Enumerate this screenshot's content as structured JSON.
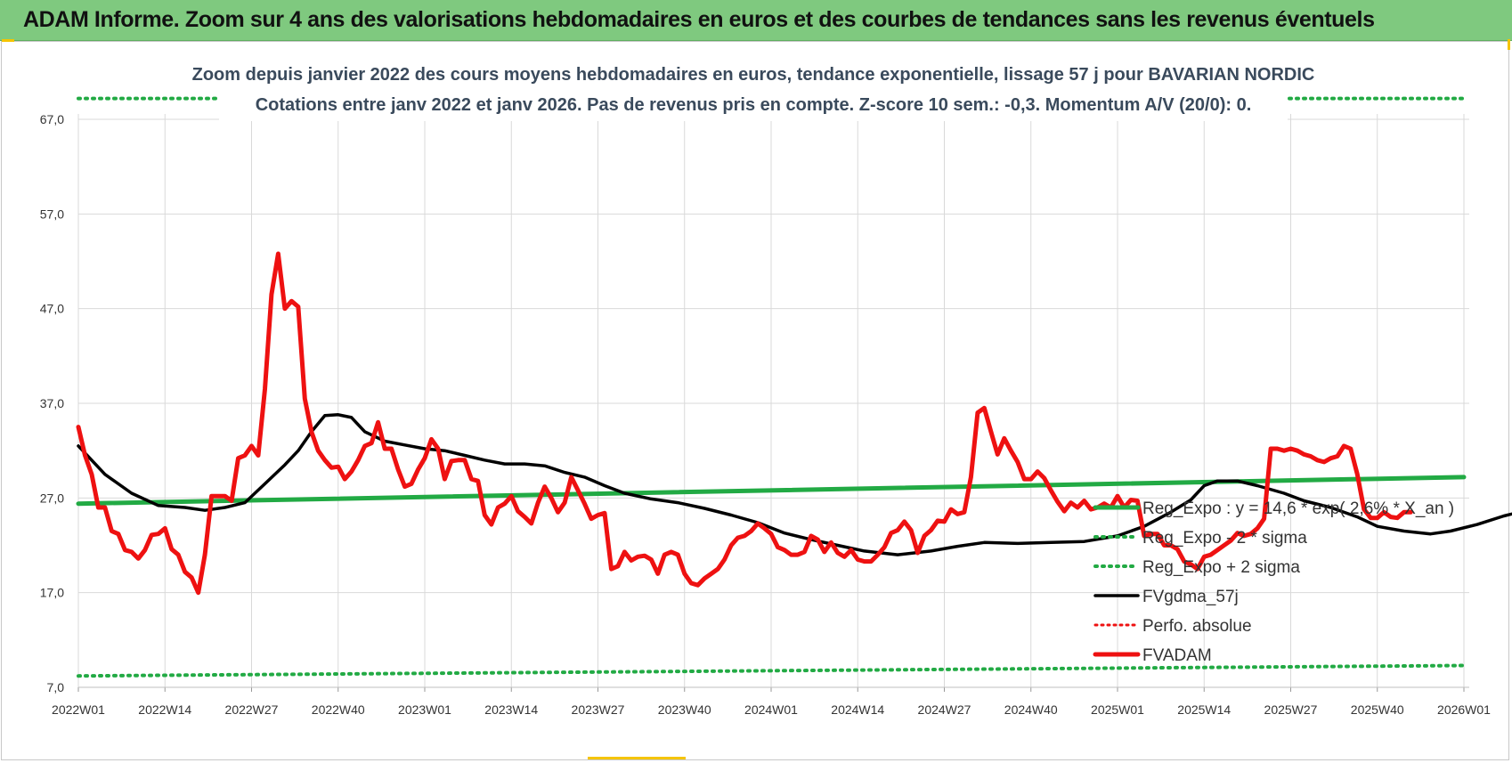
{
  "header": {
    "title": "ADAM Informe. Zoom sur 4 ans des valorisations hebdomadaires en euros et des courbes de tendances sans les revenus éventuels"
  },
  "colors": {
    "header_bg": "#7fc97f",
    "fvadam": "#ee1111",
    "fvgdma": "#000000",
    "reg_expo": "#22aa44",
    "sigma": "#22aa44",
    "perfo": "#ee1111"
  },
  "chart_data": {
    "type": "line",
    "title": "Zoom depuis janvier 2022 des cours moyens hebdomadaires en euros, tendance exponentielle, lissage 57 j pour BAVARIAN NORDIC",
    "subtitle": "Cotations entre janv 2022 et janv 2026. Pas de revenus pris en compte. Z-score 10 sem.: -0,3. Momentum A/V (20/0): 0.",
    "xlabel": "",
    "ylabel": "",
    "ylim": [
      7,
      67
    ],
    "y_ticks": [
      "7,0",
      "17,0",
      "27,0",
      "37,0",
      "47,0",
      "57,0",
      "67,0"
    ],
    "x_ticks": [
      "2022W01",
      "2022W14",
      "2022W27",
      "2022W40",
      "2023W01",
      "2023W14",
      "2023W27",
      "2023W40",
      "2024W01",
      "2024W14",
      "2024W27",
      "2024W40",
      "2025W01",
      "2025W14",
      "2025W27",
      "2025W40",
      "2026W01"
    ],
    "x_range_weeks": [
      0,
      208
    ],
    "grid": true,
    "legend_position": "right",
    "series": [
      {
        "name": "Reg_Expo : y = 14,6 * exp( 2,6% * X_an )",
        "style": "solid-green",
        "points": [
          [
            0,
            26.4
          ],
          [
            208,
            29.2
          ]
        ]
      },
      {
        "name": "Reg_Expo - 2 * sigma",
        "style": "dotted-green",
        "points": [
          [
            0,
            8.2
          ],
          [
            208,
            9.3
          ]
        ]
      },
      {
        "name": "Reg_Expo + 2 sigma",
        "style": "dotted-green",
        "points": [
          [
            0,
            69.2
          ],
          [
            208,
            69.2
          ]
        ]
      },
      {
        "name": "FVgdma_57j",
        "style": "solid-black",
        "points": [
          [
            0,
            32.5
          ],
          [
            4,
            29.5
          ],
          [
            8,
            27.5
          ],
          [
            12,
            26.2
          ],
          [
            16,
            26.0
          ],
          [
            19,
            25.7
          ],
          [
            22,
            26.0
          ],
          [
            25,
            26.5
          ],
          [
            28,
            28.5
          ],
          [
            31,
            30.5
          ],
          [
            33,
            32.0
          ],
          [
            35,
            34.0
          ],
          [
            37,
            35.7
          ],
          [
            39,
            35.8
          ],
          [
            41,
            35.5
          ],
          [
            43,
            34.0
          ],
          [
            46,
            33.0
          ],
          [
            49,
            32.6
          ],
          [
            52,
            32.2
          ],
          [
            55,
            32.0
          ],
          [
            58,
            31.5
          ],
          [
            61,
            31.0
          ],
          [
            64,
            30.6
          ],
          [
            67,
            30.6
          ],
          [
            70,
            30.4
          ],
          [
            73,
            29.7
          ],
          [
            76,
            29.2
          ],
          [
            79,
            28.3
          ],
          [
            82,
            27.5
          ],
          [
            86,
            26.9
          ],
          [
            90,
            26.5
          ],
          [
            94,
            25.9
          ],
          [
            98,
            25.2
          ],
          [
            102,
            24.4
          ],
          [
            106,
            23.3
          ],
          [
            110,
            22.6
          ],
          [
            114,
            22.0
          ],
          [
            118,
            21.4
          ],
          [
            123,
            21.0
          ],
          [
            128,
            21.4
          ],
          [
            132,
            21.9
          ],
          [
            136,
            22.3
          ],
          [
            141,
            22.2
          ],
          [
            146,
            22.3
          ],
          [
            151,
            22.4
          ],
          [
            156,
            23.0
          ],
          [
            160,
            24.0
          ],
          [
            164,
            25.5
          ],
          [
            167,
            26.8
          ],
          [
            169,
            28.3
          ],
          [
            171,
            28.8
          ],
          [
            174,
            28.8
          ],
          [
            177,
            28.3
          ],
          [
            181,
            27.5
          ],
          [
            184,
            26.7
          ],
          [
            188,
            26.0
          ],
          [
            192,
            25.0
          ],
          [
            195,
            24.0
          ],
          [
            199,
            23.5
          ],
          [
            203,
            23.2
          ],
          [
            206,
            23.5
          ],
          [
            210,
            24.2
          ],
          [
            214,
            25.1
          ],
          [
            218,
            25.8
          ],
          [
            222,
            27.0
          ],
          [
            226,
            28.2
          ],
          [
            230,
            28.8
          ],
          [
            234,
            28.8
          ],
          [
            238,
            28.8
          ],
          [
            242,
            28.4
          ],
          [
            246,
            27.4
          ],
          [
            250,
            26.6
          ],
          [
            254,
            26.2
          ],
          [
            257,
            26.2
          ]
        ]
      },
      {
        "name": "Perfo. absolue",
        "style": "dotted-red",
        "points": []
      },
      {
        "name": "FVADAM",
        "style": "solid-red-thick",
        "points": [
          [
            0,
            34.5
          ],
          [
            1,
            31.5
          ],
          [
            2,
            29.5
          ],
          [
            3,
            26.0
          ],
          [
            4,
            26.0
          ],
          [
            5,
            23.5
          ],
          [
            6,
            23.2
          ],
          [
            7,
            21.5
          ],
          [
            8,
            21.3
          ],
          [
            9,
            20.6
          ],
          [
            10,
            21.5
          ],
          [
            11,
            23.1
          ],
          [
            12,
            23.2
          ],
          [
            13,
            23.8
          ],
          [
            14,
            21.6
          ],
          [
            15,
            21.0
          ],
          [
            16,
            19.2
          ],
          [
            17,
            18.6
          ],
          [
            18,
            17.0
          ],
          [
            19,
            21.0
          ],
          [
            20,
            27.2
          ],
          [
            21,
            27.2
          ],
          [
            22,
            27.2
          ],
          [
            23,
            26.7
          ],
          [
            24,
            31.2
          ],
          [
            25,
            31.5
          ],
          [
            26,
            32.5
          ],
          [
            27,
            31.5
          ],
          [
            28,
            38.5
          ],
          [
            29,
            48.5
          ],
          [
            30,
            52.8
          ],
          [
            31,
            47.0
          ],
          [
            32,
            47.8
          ],
          [
            33,
            47.2
          ],
          [
            34,
            37.5
          ],
          [
            35,
            34.0
          ],
          [
            36,
            32.0
          ],
          [
            37,
            31.0
          ],
          [
            38,
            30.2
          ],
          [
            39,
            30.3
          ],
          [
            40,
            29.0
          ],
          [
            41,
            29.8
          ],
          [
            42,
            31.0
          ],
          [
            43,
            32.5
          ],
          [
            44,
            32.8
          ],
          [
            45,
            35.0
          ],
          [
            46,
            32.2
          ],
          [
            47,
            32.2
          ],
          [
            48,
            30.0
          ],
          [
            49,
            28.2
          ],
          [
            50,
            28.5
          ],
          [
            51,
            30.0
          ],
          [
            52,
            31.2
          ],
          [
            53,
            33.2
          ],
          [
            54,
            32.2
          ],
          [
            55,
            29.0
          ],
          [
            56,
            30.9
          ],
          [
            57,
            31.0
          ],
          [
            58,
            31.0
          ],
          [
            59,
            29.0
          ],
          [
            60,
            28.8
          ],
          [
            61,
            25.2
          ],
          [
            62,
            24.2
          ],
          [
            63,
            26.0
          ],
          [
            64,
            26.4
          ],
          [
            65,
            27.2
          ],
          [
            66,
            25.6
          ],
          [
            67,
            25.0
          ],
          [
            68,
            24.3
          ],
          [
            69,
            26.5
          ],
          [
            70,
            28.2
          ],
          [
            71,
            27.0
          ],
          [
            72,
            25.5
          ],
          [
            73,
            26.5
          ],
          [
            74,
            29.2
          ],
          [
            75,
            27.8
          ],
          [
            76,
            26.4
          ],
          [
            77,
            24.8
          ],
          [
            78,
            25.2
          ],
          [
            79,
            25.4
          ],
          [
            80,
            19.5
          ],
          [
            81,
            19.8
          ],
          [
            82,
            21.3
          ],
          [
            83,
            20.4
          ],
          [
            84,
            20.8
          ],
          [
            85,
            20.9
          ],
          [
            86,
            20.5
          ],
          [
            87,
            19.0
          ],
          [
            88,
            21.0
          ],
          [
            89,
            21.3
          ],
          [
            90,
            21.0
          ],
          [
            91,
            19.0
          ],
          [
            92,
            18.0
          ],
          [
            93,
            17.8
          ],
          [
            94,
            18.5
          ],
          [
            95,
            19.0
          ],
          [
            96,
            19.5
          ],
          [
            97,
            20.5
          ],
          [
            98,
            22.0
          ],
          [
            99,
            22.8
          ],
          [
            100,
            23.0
          ],
          [
            101,
            23.5
          ],
          [
            102,
            24.3
          ],
          [
            103,
            23.8
          ],
          [
            104,
            23.2
          ],
          [
            105,
            21.8
          ],
          [
            106,
            21.5
          ],
          [
            107,
            21.0
          ],
          [
            108,
            21.0
          ],
          [
            109,
            21.3
          ],
          [
            110,
            23.0
          ],
          [
            111,
            22.6
          ],
          [
            112,
            21.3
          ],
          [
            113,
            22.3
          ],
          [
            114,
            21.2
          ],
          [
            115,
            20.8
          ],
          [
            116,
            21.5
          ],
          [
            117,
            20.5
          ],
          [
            118,
            20.3
          ],
          [
            119,
            20.3
          ],
          [
            120,
            21.0
          ],
          [
            121,
            21.8
          ],
          [
            122,
            23.3
          ],
          [
            123,
            23.6
          ],
          [
            124,
            24.5
          ],
          [
            125,
            23.6
          ],
          [
            126,
            21.2
          ],
          [
            127,
            23.0
          ],
          [
            128,
            23.6
          ],
          [
            129,
            24.6
          ],
          [
            130,
            24.5
          ],
          [
            131,
            25.8
          ],
          [
            132,
            25.3
          ],
          [
            133,
            25.5
          ],
          [
            134,
            29.2
          ],
          [
            135,
            36.0
          ],
          [
            136,
            36.5
          ],
          [
            137,
            34.0
          ],
          [
            138,
            31.6
          ],
          [
            139,
            33.3
          ],
          [
            140,
            32.0
          ],
          [
            141,
            30.8
          ],
          [
            142,
            29.0
          ],
          [
            143,
            29.0
          ],
          [
            144,
            29.8
          ],
          [
            145,
            29.1
          ],
          [
            146,
            27.8
          ],
          [
            147,
            26.6
          ],
          [
            148,
            25.6
          ],
          [
            149,
            26.5
          ],
          [
            150,
            26.0
          ],
          [
            151,
            26.7
          ],
          [
            152,
            25.8
          ],
          [
            153,
            26.0
          ],
          [
            154,
            26.4
          ],
          [
            155,
            26.0
          ],
          [
            156,
            27.2
          ],
          [
            157,
            26.0
          ],
          [
            158,
            26.8
          ],
          [
            159,
            26.7
          ],
          [
            160,
            23.0
          ],
          [
            161,
            23.2
          ],
          [
            162,
            23.2
          ],
          [
            163,
            22.0
          ],
          [
            164,
            22.0
          ],
          [
            165,
            21.6
          ],
          [
            166,
            20.3
          ],
          [
            167,
            20.0
          ],
          [
            168,
            19.5
          ],
          [
            169,
            20.8
          ],
          [
            170,
            21.0
          ],
          [
            171,
            21.5
          ],
          [
            172,
            22.0
          ],
          [
            173,
            22.5
          ],
          [
            174,
            23.3
          ],
          [
            175,
            23.0
          ],
          [
            176,
            23.2
          ],
          [
            177,
            23.8
          ],
          [
            178,
            24.8
          ],
          [
            179,
            32.2
          ],
          [
            180,
            32.2
          ],
          [
            181,
            32.0
          ],
          [
            182,
            32.2
          ],
          [
            183,
            32.0
          ],
          [
            184,
            31.6
          ],
          [
            185,
            31.4
          ],
          [
            186,
            31.0
          ],
          [
            187,
            30.8
          ],
          [
            188,
            31.2
          ],
          [
            189,
            31.4
          ],
          [
            190,
            32.5
          ],
          [
            191,
            32.2
          ],
          [
            192,
            29.5
          ],
          [
            193,
            25.8
          ],
          [
            194,
            24.9
          ],
          [
            195,
            24.9
          ],
          [
            196,
            25.5
          ],
          [
            197,
            25.0
          ],
          [
            198,
            24.9
          ],
          [
            199,
            25.5
          ],
          [
            200,
            25.5
          ]
        ]
      }
    ]
  }
}
